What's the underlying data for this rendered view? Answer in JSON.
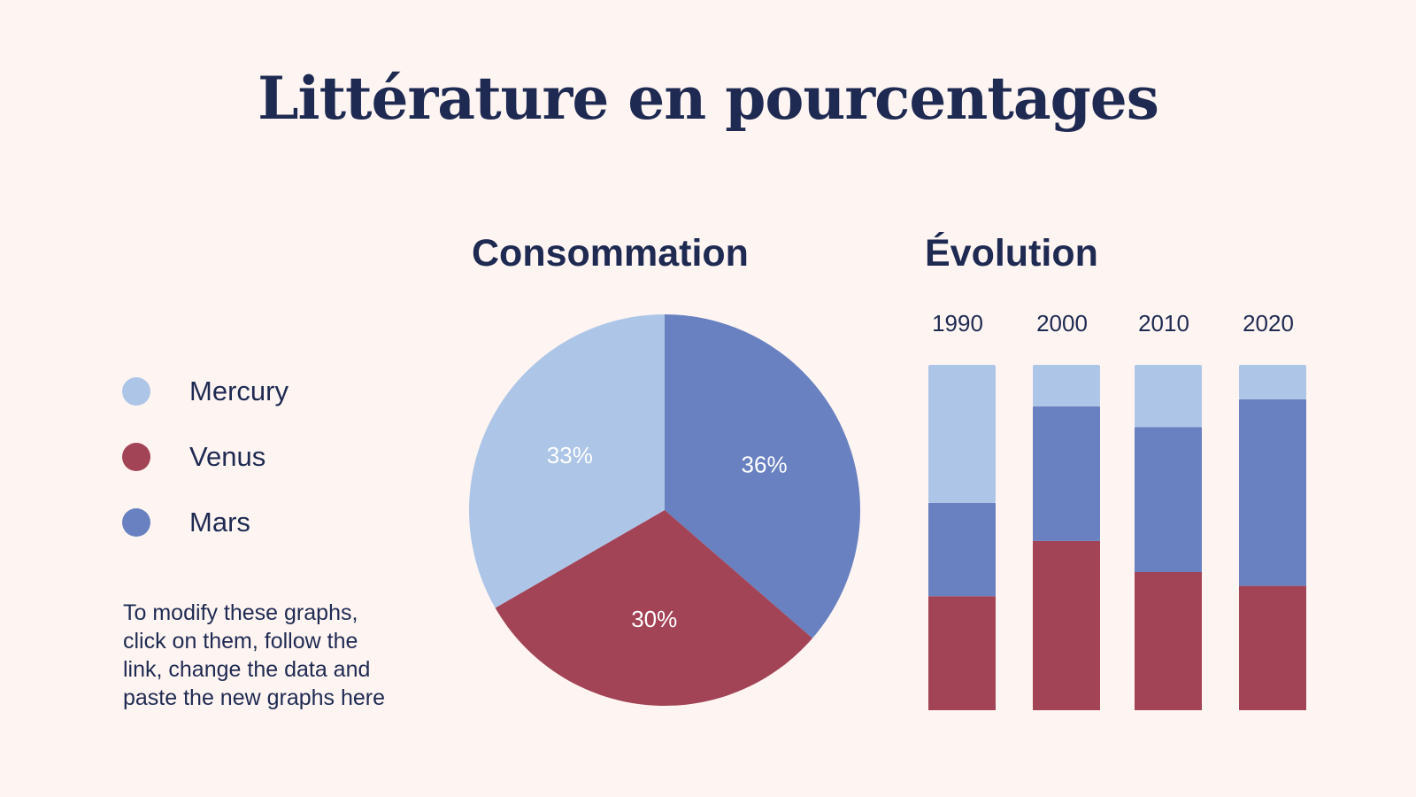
{
  "title": "Littérature en pourcentages",
  "legend": [
    {
      "label": "Mercury",
      "color": "#adc5e7"
    },
    {
      "label": "Venus",
      "color": "#a34356"
    },
    {
      "label": "Mars",
      "color": "#6981c0"
    }
  ],
  "note": "To modify these graphs,\nclick on them, follow the\nlink, change the data and\npaste the new graphs here",
  "chart_data": [
    {
      "type": "pie",
      "title": "Consommation",
      "labels": [
        "Mercury",
        "Venus",
        "Mars"
      ],
      "values": [
        33,
        30,
        36
      ],
      "value_labels": [
        "33%",
        "30%",
        "36%"
      ],
      "colors": [
        "#adc5e7",
        "#a34356",
        "#6981c0"
      ]
    },
    {
      "type": "bar",
      "stacked": true,
      "title": "Évolution",
      "categories": [
        "1990",
        "2000",
        "2010",
        "2020"
      ],
      "series": [
        {
          "name": "Venus",
          "values": [
            33,
            49,
            40,
            36
          ],
          "color": "#a34356"
        },
        {
          "name": "Mars",
          "values": [
            27,
            39,
            42,
            54
          ],
          "color": "#6981c0"
        },
        {
          "name": "Mercury",
          "values": [
            40,
            12,
            18,
            10
          ],
          "color": "#adc5e7"
        }
      ],
      "ylim": [
        0,
        100
      ]
    }
  ]
}
